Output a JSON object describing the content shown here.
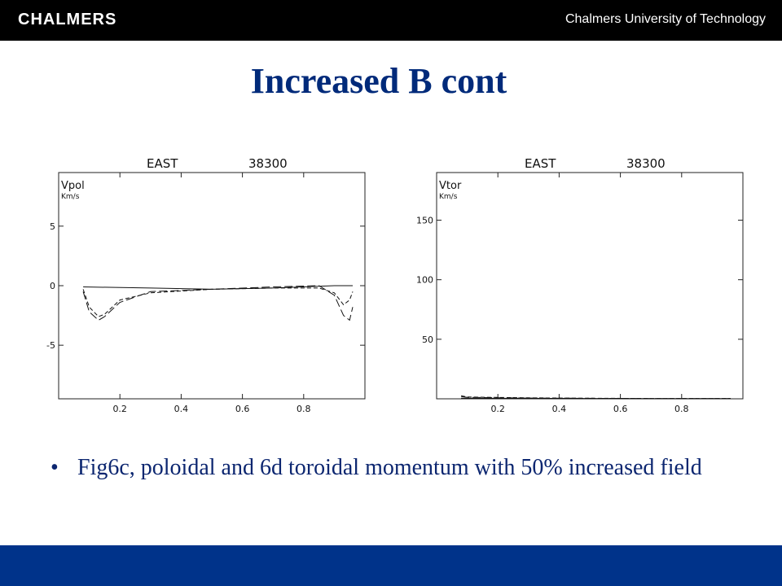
{
  "header": {
    "logo_text": "CHALMERS",
    "institution": "Chalmers University of Technology"
  },
  "slide": {
    "title": "Increased B cont",
    "bullet_symbol": "•",
    "bullet": "Fig6c, poloidal and 6d toroidal momentum with 50% increased field"
  },
  "chart_data": [
    {
      "type": "line",
      "header_left": "EAST",
      "header_right": "38300",
      "panel_label": "Vpol",
      "unit_label": "Km/s",
      "xlim": [
        0.0,
        1.0
      ],
      "ylim": [
        -9.5,
        9.5
      ],
      "xticks": [
        "0.2",
        "0.4",
        "0.6",
        "0.8"
      ],
      "xtick_values": [
        0.2,
        0.4,
        0.6,
        0.8
      ],
      "yticks": [
        "5",
        "0",
        "-5"
      ],
      "ytick_values": [
        5,
        0,
        -5
      ],
      "series": [
        {
          "style": "solid",
          "x": [
            0.08,
            0.3,
            0.5,
            0.7,
            0.9,
            0.96
          ],
          "y": [
            -0.1,
            -0.2,
            -0.3,
            -0.2,
            0.0,
            0.0
          ]
        },
        {
          "style": "dashed",
          "x": [
            0.08,
            0.1,
            0.13,
            0.15,
            0.2,
            0.3,
            0.5,
            0.7,
            0.85,
            0.9,
            0.93,
            0.95,
            0.96
          ],
          "y": [
            -0.3,
            -1.8,
            -2.6,
            -2.4,
            -1.2,
            -0.6,
            -0.3,
            -0.2,
            -0.2,
            -0.6,
            -1.6,
            -1.2,
            -0.5
          ]
        },
        {
          "style": "longdash",
          "x": [
            0.08,
            0.1,
            0.13,
            0.15,
            0.2,
            0.3,
            0.5,
            0.7,
            0.85,
            0.9,
            0.93,
            0.95,
            0.96
          ],
          "y": [
            -0.5,
            -2.2,
            -2.9,
            -2.6,
            -1.4,
            -0.5,
            -0.3,
            -0.1,
            0.0,
            -0.8,
            -2.5,
            -2.9,
            -1.8
          ]
        }
      ]
    },
    {
      "type": "line",
      "header_left": "EAST",
      "header_right": "38300",
      "panel_label": "Vtor",
      "unit_label": "Km/s",
      "xlim": [
        0.0,
        1.0
      ],
      "ylim": [
        0,
        190
      ],
      "xticks": [
        "0.2",
        "0.4",
        "0.6",
        "0.8"
      ],
      "xtick_values": [
        0.2,
        0.4,
        0.6,
        0.8
      ],
      "yticks": [
        "150",
        "100",
        "50"
      ],
      "ytick_values": [
        150,
        100,
        50
      ],
      "series": [
        {
          "style": "solid",
          "x": [
            0.08,
            0.3,
            0.5,
            0.7,
            0.96
          ],
          "y": [
            0.5,
            0.4,
            0.3,
            0.2,
            0.2
          ]
        },
        {
          "style": "dashed",
          "x": [
            0.08,
            0.1,
            0.3,
            0.5,
            0.7,
            0.96
          ],
          "y": [
            2.5,
            1.5,
            0.8,
            0.5,
            0.3,
            0.3
          ]
        },
        {
          "style": "longdash",
          "x": [
            0.08,
            0.1,
            0.3,
            0.5,
            0.7,
            0.96
          ],
          "y": [
            2.0,
            1.2,
            0.6,
            0.4,
            0.2,
            0.2
          ]
        }
      ]
    }
  ]
}
